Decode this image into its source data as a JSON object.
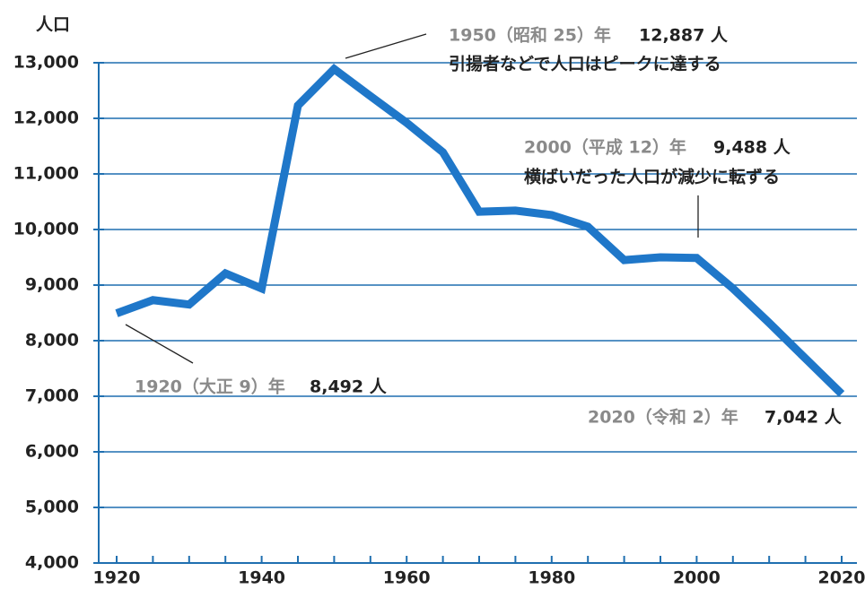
{
  "chart_data": {
    "type": "line",
    "y_axis_label": "人口",
    "x": [
      1920,
      1925,
      1930,
      1935,
      1940,
      1945,
      1950,
      1955,
      1960,
      1965,
      1970,
      1975,
      1980,
      1985,
      1990,
      1995,
      2000,
      2005,
      2010,
      2015,
      2020
    ],
    "series": [
      {
        "name": "人口",
        "color": "#1f77c9",
        "values": [
          8492,
          8730,
          8650,
          9210,
          8940,
          12230,
          12887,
          12400,
          11920,
          11390,
          10320,
          10340,
          10260,
          10050,
          9450,
          9500,
          9488,
          8940,
          8320,
          7680,
          7042
        ]
      }
    ],
    "xlim": [
      1920,
      2020
    ],
    "xticks": [
      1920,
      1940,
      1960,
      1980,
      2000,
      2020
    ],
    "ylim": [
      4000,
      13000
    ],
    "yticks": [
      {
        "value": 4000,
        "label": "4,000"
      },
      {
        "value": 5000,
        "label": "5,000"
      },
      {
        "value": 6000,
        "label": "6,000"
      },
      {
        "value": 7000,
        "label": "7,000"
      },
      {
        "value": 8000,
        "label": "8,000"
      },
      {
        "value": 9000,
        "label": "9,000"
      },
      {
        "value": 10000,
        "label": "10,000"
      },
      {
        "value": 11000,
        "label": "11,000"
      },
      {
        "value": 12000,
        "label": "12,000"
      },
      {
        "value": 13000,
        "label": "13,000"
      }
    ],
    "grid": true,
    "annotations": [
      {
        "year_label": "1950（昭和 25）年",
        "value_label": "12,887 人",
        "note": "引揚者などで人口はピークに達する"
      },
      {
        "year_label": "2000（平成 12）年",
        "value_label": "9,488 人",
        "note": "横ばいだった人口が減少に転ずる"
      },
      {
        "year_label": "1920（大正 9）年",
        "value_label": "8,492 人"
      },
      {
        "year_label": "2020（令和 2）年",
        "value_label": "7,042 人"
      }
    ]
  }
}
